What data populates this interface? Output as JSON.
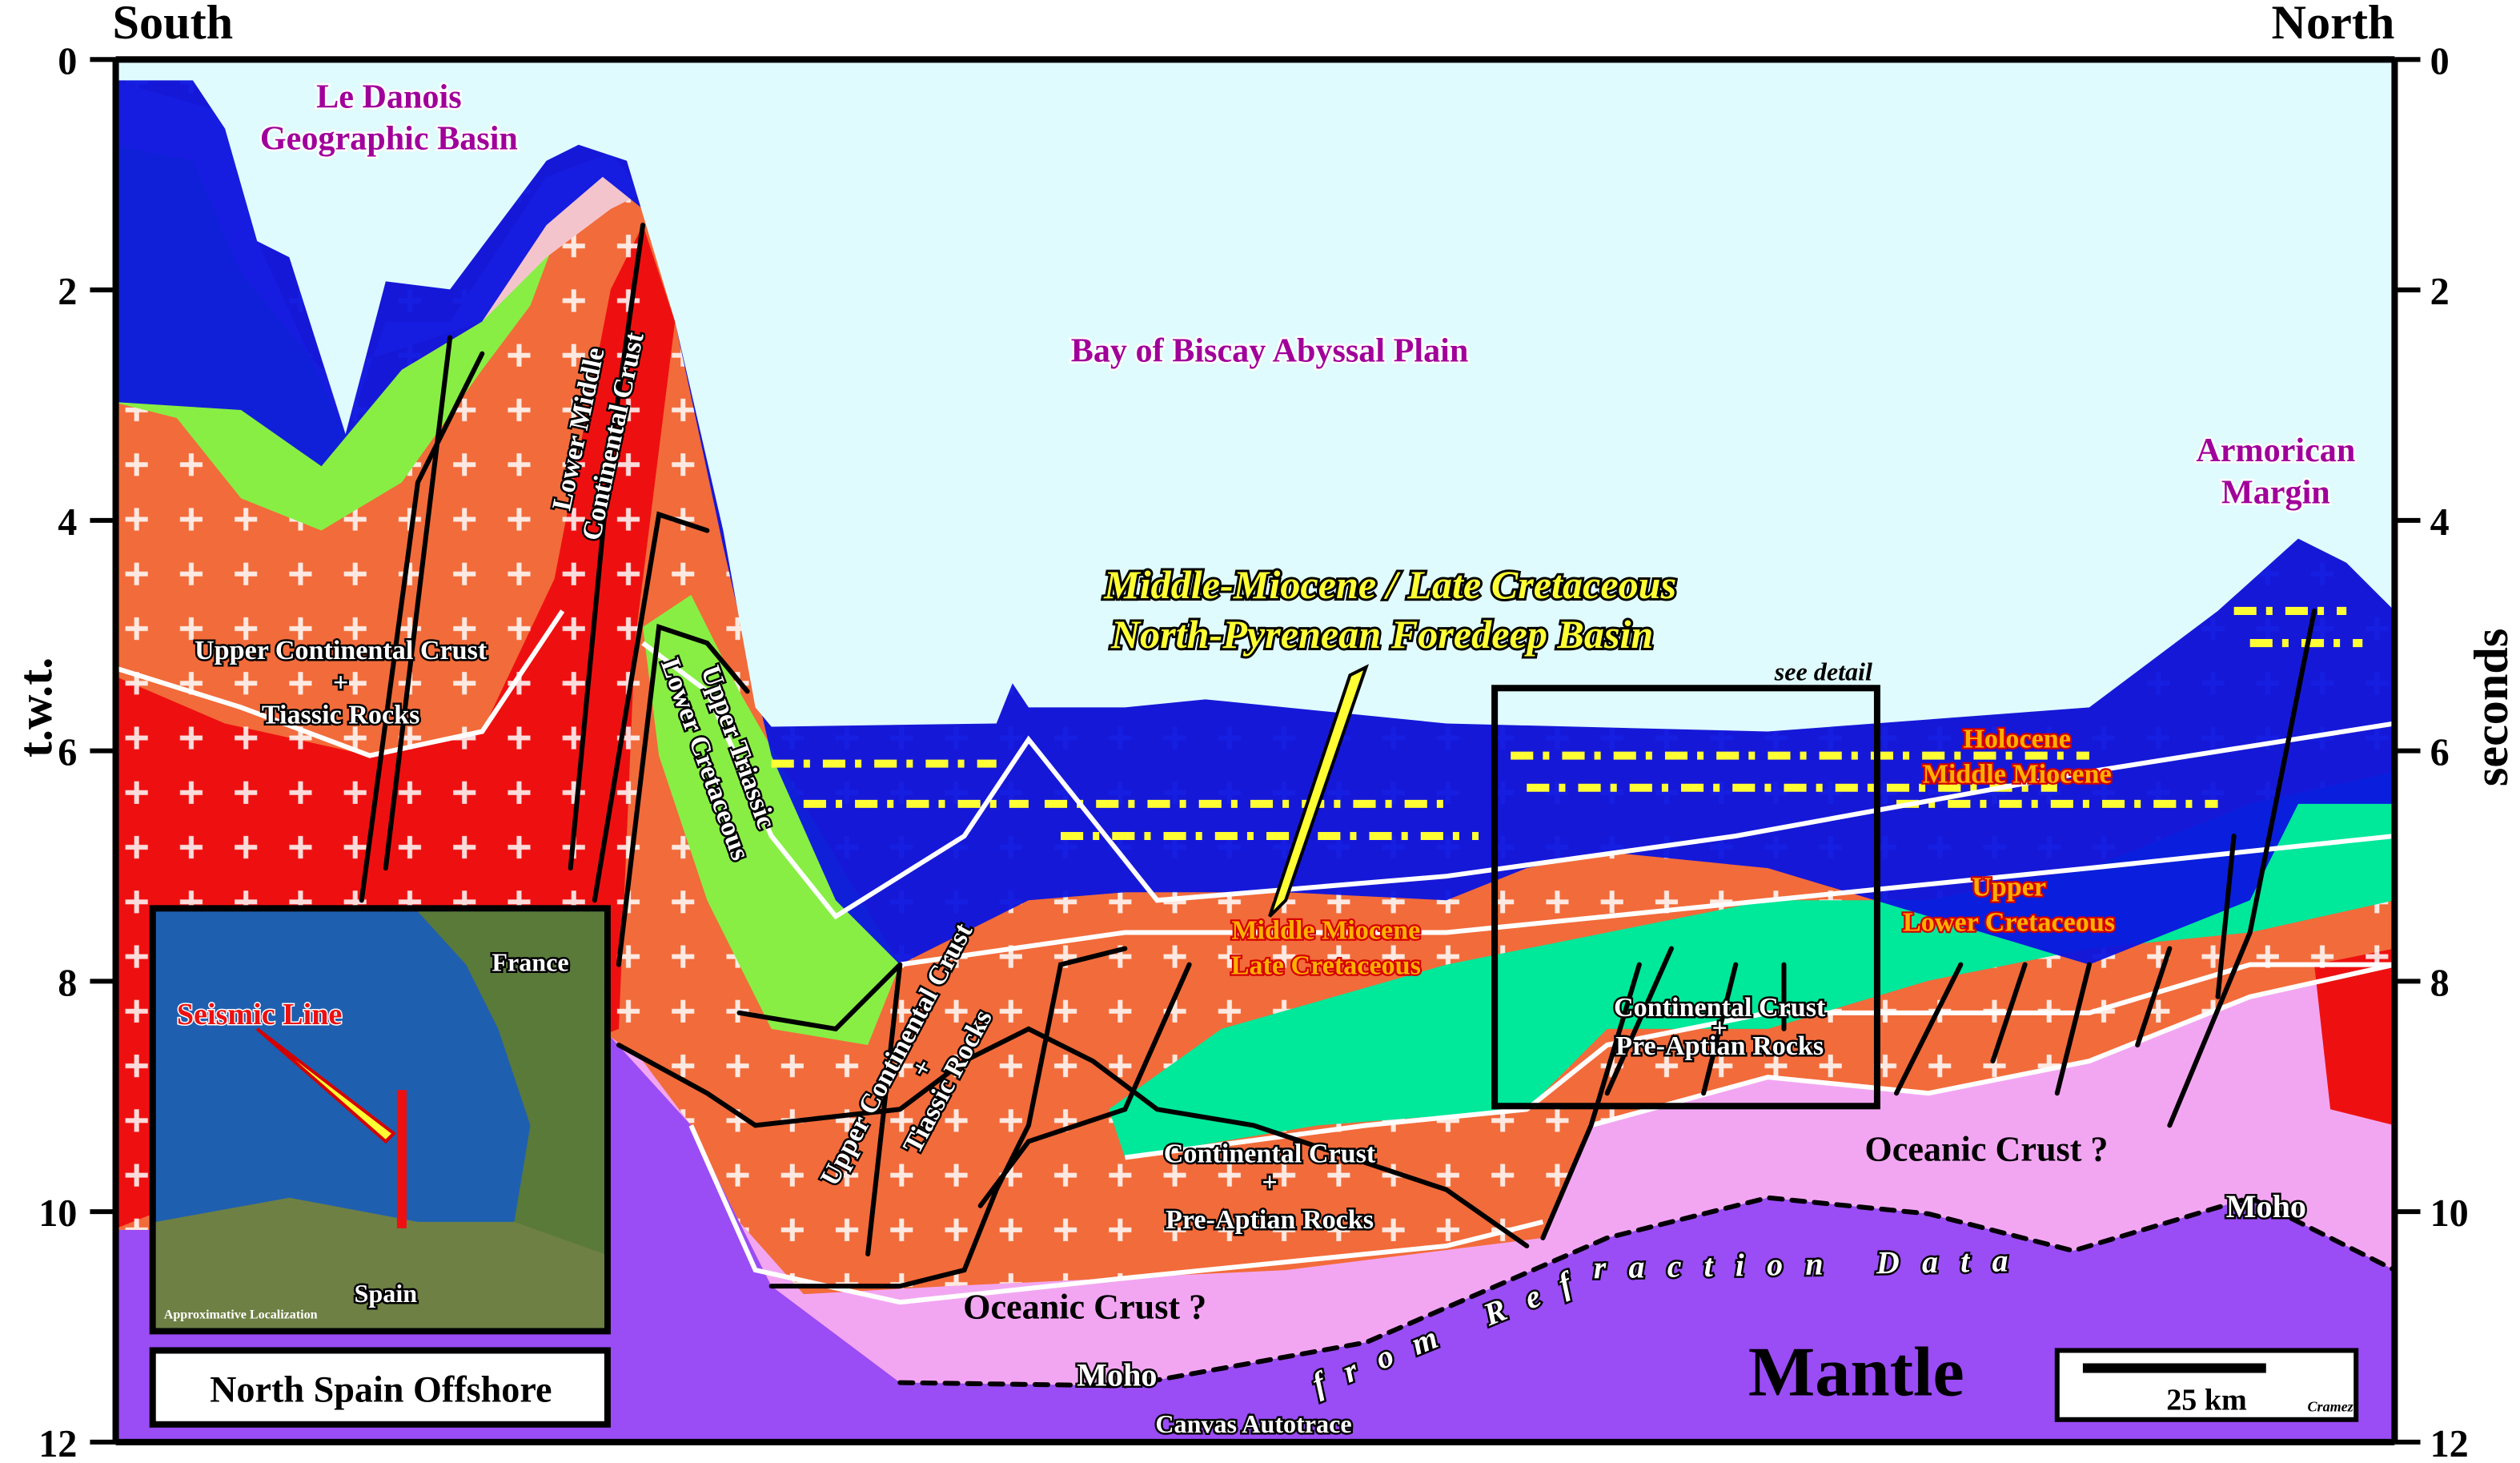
{
  "header": {
    "left": "South",
    "right": "North"
  },
  "axes": {
    "left_label": "t.w.t.",
    "right_label": "seconds",
    "range": [
      0,
      12
    ],
    "ticks": [
      0,
      2,
      4,
      6,
      8,
      10,
      12
    ]
  },
  "labels": {
    "le_danois": [
      "Le Danois",
      "Geographic Basin"
    ],
    "abyssal_plain": "Bay of Biscay Abyssal Plain",
    "armorican": [
      "Armorican",
      "Margin"
    ],
    "foredeep": [
      "Middle-Miocene / Late Cretaceous",
      "North-Pyrenean Foredeep Basin"
    ],
    "see_detail": "see detail",
    "holocene": [
      "Holocene",
      "Middle Miocene"
    ],
    "upper_lower_cretaceous": [
      "Upper",
      "Lower Cretaceous"
    ],
    "miocene_cretaceous": [
      "Middle Miocene",
      "Late  Cretaceous"
    ],
    "upper_crust_left": [
      "Upper Continental Crust",
      "+",
      "Tiassic Rocks"
    ],
    "lower_middle_crust": [
      "Lower Middle",
      "Continental Crust"
    ],
    "triassic_cretaceous": [
      "Upper Triassic",
      "Lower Cretaceous"
    ],
    "upper_crust_center": [
      "Upper Continental Crust",
      "+",
      "Tiassic Rocks"
    ],
    "crust_center": [
      "Continental Crust",
      "+",
      "Pre-Aptian Rocks"
    ],
    "crust_detail": [
      "Continental Crust",
      "+",
      "Pre-Aptian Rocks"
    ],
    "oceanic_left": "Oceanic Crust ?",
    "oceanic_right": "Oceanic Crust ?",
    "moho_left": "Moho",
    "moho_right": "Moho",
    "refraction": "from Refraction Data",
    "mantle": "Mantle",
    "autotrace": "Canvas Autotrace"
  },
  "inset": {
    "country_north": "France",
    "line": "Seismic Line",
    "country_south": "Spain",
    "note": "Approximative Localization",
    "title": "North Spain Offshore"
  },
  "scale": {
    "length": "25 km",
    "author": "Cramez"
  }
}
